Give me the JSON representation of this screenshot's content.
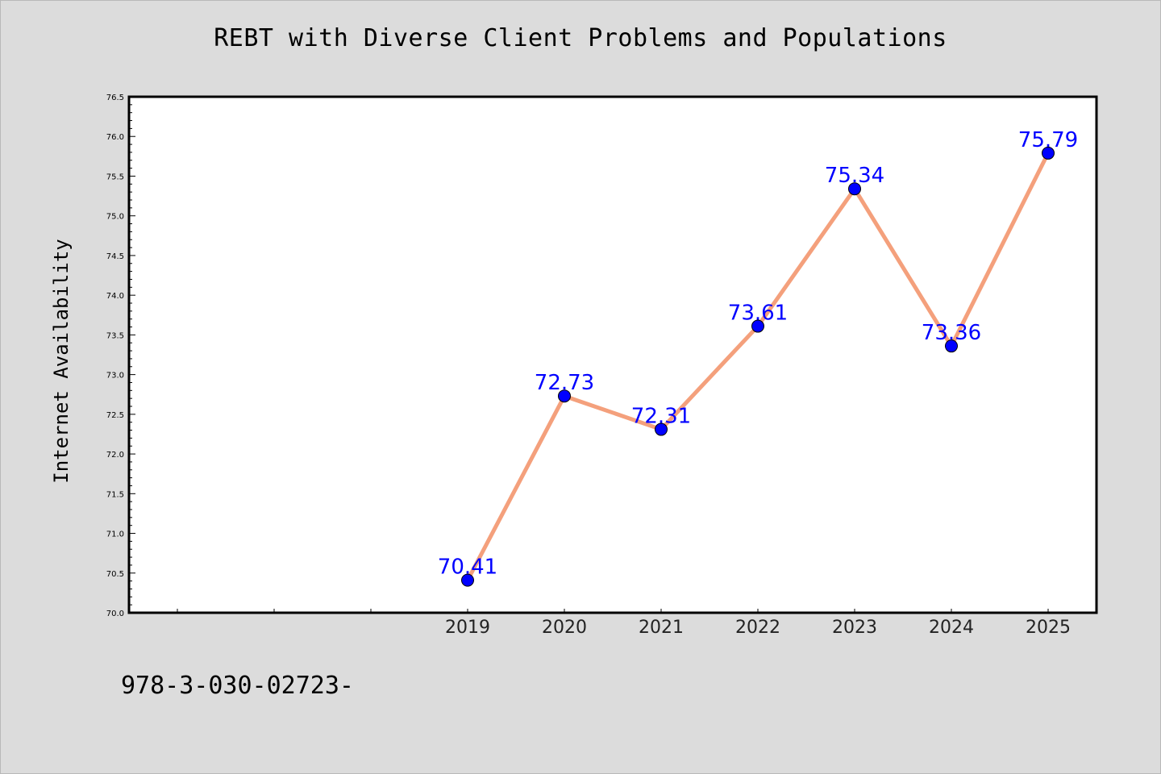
{
  "chart_data": {
    "type": "line",
    "title": "REBT with Diverse Client Problems and Populations",
    "xlabel": "",
    "ylabel": "Internet Availability",
    "x": [
      "2019",
      "2020",
      "2021",
      "2022",
      "2023",
      "2024",
      "2025"
    ],
    "series": [
      {
        "values": [
          70.41,
          72.73,
          72.31,
          73.61,
          75.34,
          73.36,
          75.79
        ],
        "data_labels": [
          "70.41",
          "72.73",
          "72.31",
          "73.61",
          "75.34",
          "73.36",
          "75.79"
        ]
      }
    ],
    "ylim": [
      70.0,
      76.5
    ],
    "y_ticks": [
      "70.0",
      "70.5",
      "71.0",
      "71.5",
      "72.0",
      "72.5",
      "73.0",
      "73.5",
      "74.0",
      "74.5",
      "75.0",
      "75.5",
      "76.0",
      "76.5"
    ],
    "grid": false,
    "line_color": "#f4a07c",
    "marker_color": "#0000ff",
    "label_color": "#0000ff",
    "background_color": "#dcdcdc",
    "plot_background_color": "#ffffff",
    "footnote": "978-3-030-02723-"
  }
}
